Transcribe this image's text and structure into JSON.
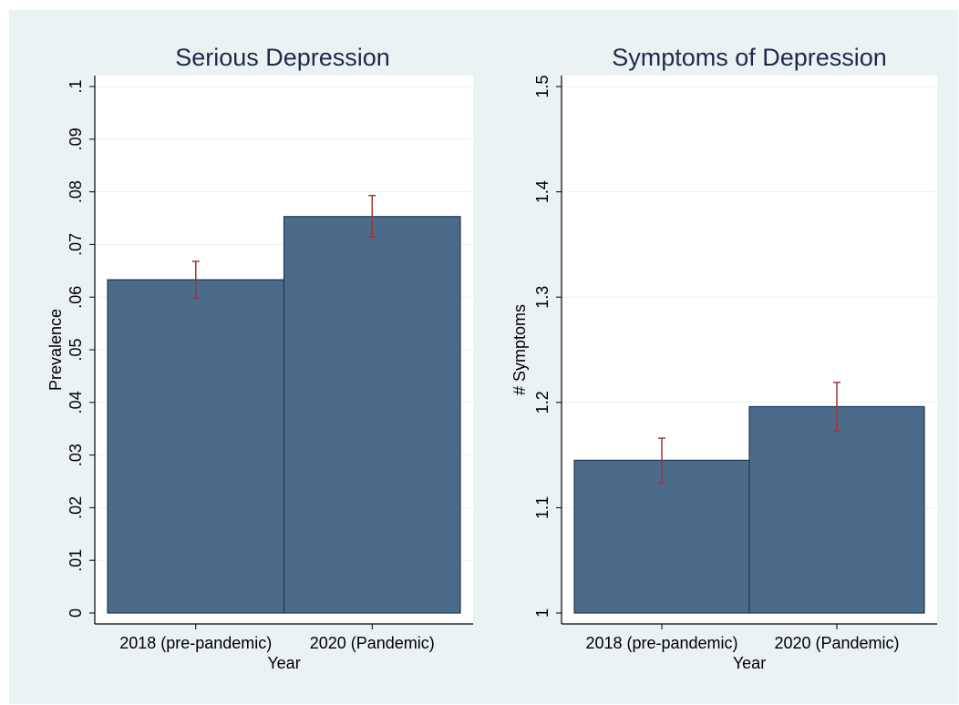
{
  "figure": {
    "background": "#eaf2f3"
  },
  "style": {
    "bar_fill": "#4a6b8a",
    "bar_stroke": "#1e3a55",
    "errorbar_color": "#a0343a",
    "title_color": "#1e2a4a",
    "gridline_color": "#eaf2f3",
    "plot_background": "#ffffff"
  },
  "chart_data": [
    {
      "type": "bar",
      "title": "Serious Depression",
      "xlabel": "Year",
      "ylabel": "Prevalence",
      "categories": [
        "2018 (pre-pandemic)",
        "2020 (Pandemic)"
      ],
      "values": [
        0.0633,
        0.0753
      ],
      "error_bars": {
        "lower": [
          0.0598,
          0.0715
        ],
        "upper": [
          0.0668,
          0.0793
        ]
      },
      "ylim": [
        0,
        0.1
      ],
      "yticks": [
        0,
        0.01,
        0.02,
        0.03,
        0.04,
        0.05,
        0.06,
        0.07,
        0.08,
        0.09,
        0.1
      ],
      "ytick_labels": [
        "0",
        ".01",
        ".02",
        ".03",
        ".04",
        ".05",
        ".06",
        ".07",
        ".08",
        ".09",
        ".1"
      ],
      "grid": true,
      "legend": "none"
    },
    {
      "type": "bar",
      "title": "Symptoms of Depression",
      "xlabel": "Year",
      "ylabel": "# Symptoms",
      "categories": [
        "2018 (pre-pandemic)",
        "2020 (Pandemic)"
      ],
      "values": [
        1.145,
        1.196
      ],
      "error_bars": {
        "lower": [
          1.123,
          1.173
        ],
        "upper": [
          1.166,
          1.219
        ]
      },
      "ylim": [
        1,
        1.5
      ],
      "yticks": [
        1,
        1.1,
        1.2,
        1.3,
        1.4,
        1.5
      ],
      "ytick_labels": [
        "1",
        "1.1",
        "1.2",
        "1.3",
        "1.4",
        "1.5"
      ],
      "grid": true,
      "legend": "none"
    }
  ]
}
